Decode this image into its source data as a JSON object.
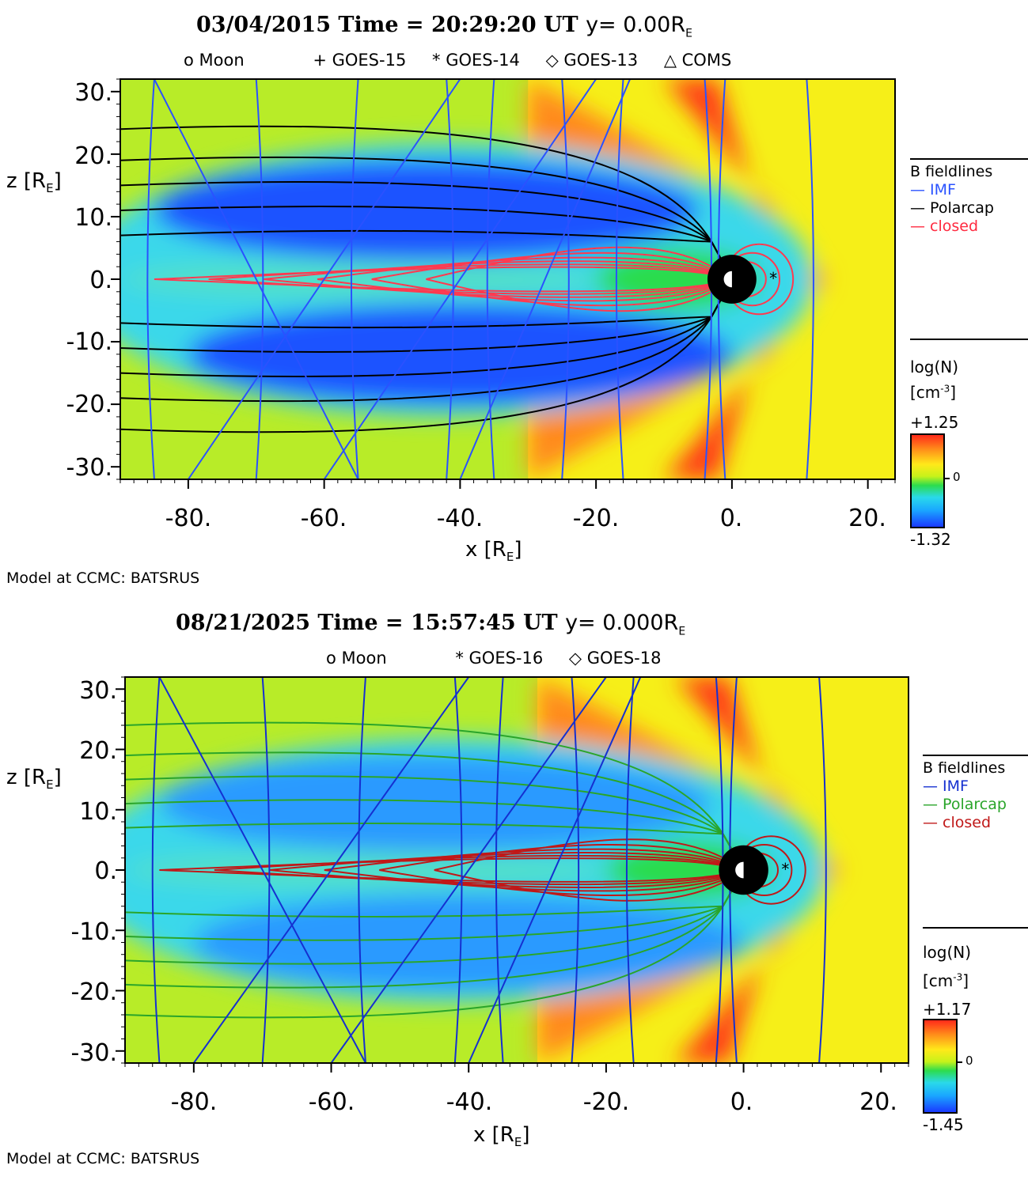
{
  "chart_data": [
    {
      "type": "heatmap",
      "title": {
        "date": "03/04/2015",
        "time_label": "Time =",
        "time": "20:29:20",
        "ut": "UT",
        "y": "y= 0.00R",
        "y_sub": "E"
      },
      "satellites": [
        "o Moon",
        "+ GOES-15",
        "* GOES-14",
        "◇ GOES-13",
        "△ COMS"
      ],
      "xlabel": "x [R",
      "xlabel_sub": "E",
      "xlabel_end": "]",
      "ylabel": "z [R",
      "ylabel_sub": "E",
      "ylabel_end": "]",
      "xlim": [
        -90,
        24
      ],
      "ylim": [
        -32,
        32
      ],
      "xticks": [
        "-80.",
        "-60.",
        "-40.",
        "-20.",
        "0.",
        "20."
      ],
      "xtick_values": [
        -80,
        -60,
        -40,
        -20,
        0,
        20
      ],
      "yticks": [
        "30.",
        "20.",
        "10.",
        "0.",
        "-10.",
        "-20.",
        "-30."
      ],
      "ytick_values": [
        30,
        20,
        10,
        0,
        -10,
        -20,
        -30
      ],
      "legend_title": "B fieldlines",
      "legend": [
        {
          "label": "IMF",
          "color": "#2a52ff"
        },
        {
          "label": "Polarcap",
          "color": "#000000"
        },
        {
          "label": "closed",
          "color": "#ff2a40"
        }
      ],
      "colorbar_label": "log(N)",
      "colorbar_units": "[cm",
      "colorbar_units_sup": "-3",
      "colorbar_units_end": "]",
      "colorbar_max": "+1.25",
      "colorbar_mid": "0",
      "colorbar_min": "-1.32",
      "footer": "Model at CCMC: BATSRUS",
      "polarcap_color": "#000000",
      "closed_color": "#ff3a50",
      "imf_color": "#2a52ff",
      "magnetopause_x": 11,
      "bowshock_x": 14
    },
    {
      "type": "heatmap",
      "title": {
        "date": "08/21/2025",
        "time_label": "Time =",
        "time": "15:57:45",
        "ut": "UT",
        "y": "y= 0.000R",
        "y_sub": "E"
      },
      "satellites": [
        "o Moon",
        "* GOES-16",
        "◇ GOES-18"
      ],
      "xlabel": "x [R",
      "xlabel_sub": "E",
      "xlabel_end": "]",
      "ylabel": "z [R",
      "ylabel_sub": "E",
      "ylabel_end": "]",
      "xlim": [
        -90,
        24
      ],
      "ylim": [
        -32,
        32
      ],
      "xticks": [
        "-80.",
        "-60.",
        "-40.",
        "-20.",
        "0.",
        "20."
      ],
      "xtick_values": [
        -80,
        -60,
        -40,
        -20,
        0,
        20
      ],
      "yticks": [
        "30.",
        "20.",
        "10.",
        "0.",
        "-10.",
        "-20.",
        "-30."
      ],
      "ytick_values": [
        30,
        20,
        10,
        0,
        -10,
        -20,
        -30
      ],
      "legend_title": "B fieldlines",
      "legend": [
        {
          "label": "IMF",
          "color": "#1530d0"
        },
        {
          "label": "Polarcap",
          "color": "#2aa52a"
        },
        {
          "label": "closed",
          "color": "#c01818"
        }
      ],
      "colorbar_label": "log(N)",
      "colorbar_units": "[cm",
      "colorbar_units_sup": "-3",
      "colorbar_units_end": "]",
      "colorbar_max": "+1.17",
      "colorbar_mid": "0",
      "colorbar_min": "-1.45",
      "footer": "Model at CCMC: BATSRUS",
      "polarcap_color": "#2aa52a",
      "closed_color": "#c01818",
      "imf_color": "#1530d0",
      "magnetopause_x": 11,
      "bowshock_x": 14
    }
  ]
}
